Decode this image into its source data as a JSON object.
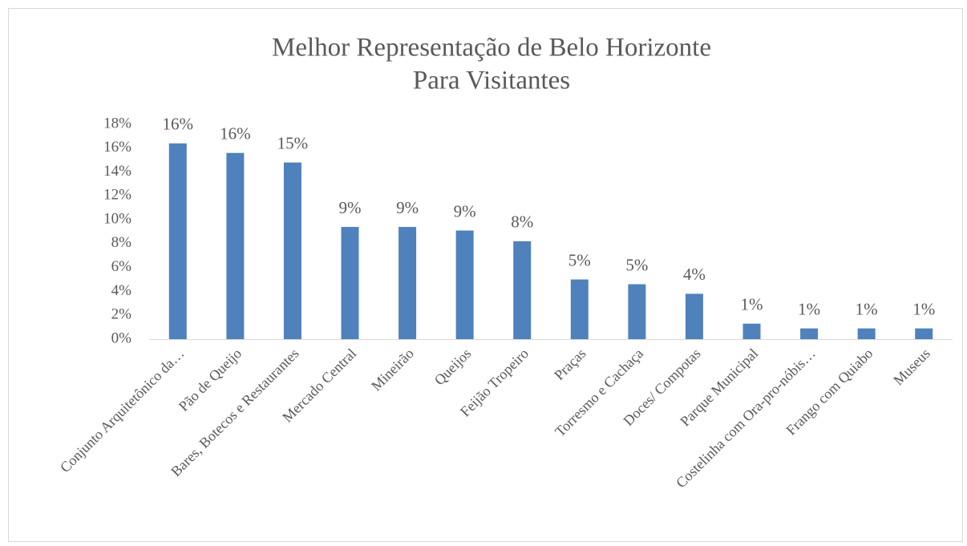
{
  "chart_data": {
    "type": "bar",
    "title": [
      "Melhor Representação de Belo Horizonte",
      "Para Visitantes"
    ],
    "categories": [
      "Conjunto Arquitetônico da…",
      "Pão de Queijo",
      "Bares, Botecos e Restaurantes",
      "Mercado Central",
      "Mineirão",
      "Queijos",
      "Feijão Tropeiro",
      "Praças",
      "Torresmo e Cachaça",
      "Doces/ Compotas",
      "Parque Municipal",
      "Costelinha com Ora-pro-nóbis…",
      "Frango com Quiabo",
      "Museus"
    ],
    "values": [
      16.4,
      15.6,
      14.8,
      9.4,
      9.4,
      9.1,
      8.2,
      5.0,
      4.6,
      3.8,
      1.3,
      0.9,
      0.9,
      0.9
    ],
    "value_labels": [
      "16%",
      "16%",
      "15%",
      "9%",
      "9%",
      "9%",
      "8%",
      "5%",
      "5%",
      "4%",
      "1%",
      "1%",
      "1%",
      "1%"
    ],
    "color": "#4f81bd",
    "ylim": [
      0,
      18
    ],
    "yticks": [
      {
        "value": 0,
        "label": "0%"
      },
      {
        "value": 2,
        "label": "2%"
      },
      {
        "value": 4,
        "label": "4%"
      },
      {
        "value": 6,
        "label": "6%"
      },
      {
        "value": 8,
        "label": "8%"
      },
      {
        "value": 10,
        "label": "10%"
      },
      {
        "value": 12,
        "label": "12%"
      },
      {
        "value": 14,
        "label": "14%"
      },
      {
        "value": 16,
        "label": "16%"
      },
      {
        "value": 18,
        "label": "18%"
      }
    ],
    "grid": false
  }
}
